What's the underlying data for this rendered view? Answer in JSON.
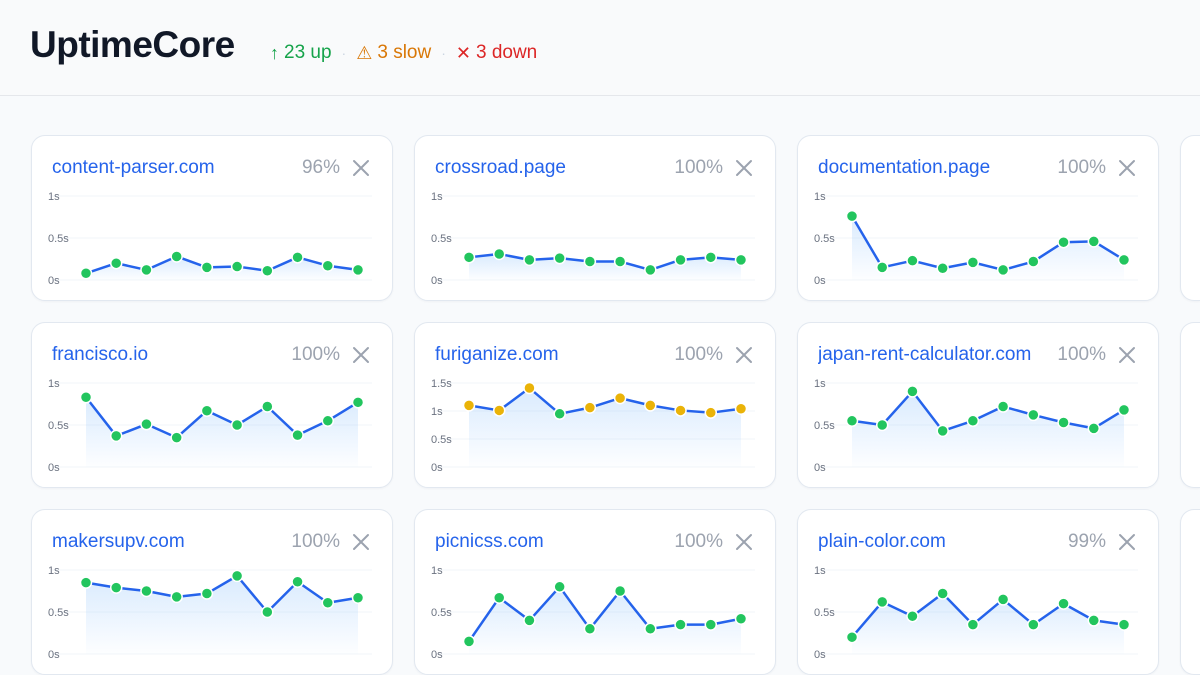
{
  "app": {
    "title": "UptimeCore",
    "summary": {
      "up": {
        "label": "23 up",
        "icon": "arrow-up-icon",
        "color": "#16a34a"
      },
      "slow": {
        "label": "3 slow",
        "icon": "warning-icon",
        "color": "#d97706"
      },
      "down": {
        "label": "3 down",
        "icon": "cross-icon",
        "color": "#dc2626"
      }
    }
  },
  "colors": {
    "line": "#2563eb",
    "ok": "#22c55e",
    "slow": "#eab308",
    "link": "#2563eb"
  },
  "monitors": [
    {
      "domain": "content-parser.com",
      "uptime": "96%",
      "y_labels": [
        "1s",
        "0.5s",
        "0s"
      ],
      "ymax": 1,
      "values": [
        0.08,
        0.2,
        0.12,
        0.28,
        0.15,
        0.16,
        0.11,
        0.27,
        0.17,
        0.12
      ],
      "status": [
        "ok",
        "ok",
        "ok",
        "ok",
        "ok",
        "ok",
        "ok",
        "ok",
        "ok",
        "ok"
      ]
    },
    {
      "domain": "crossroad.page",
      "uptime": "100%",
      "y_labels": [
        "1s",
        "0.5s",
        "0s"
      ],
      "ymax": 1,
      "values": [
        0.27,
        0.31,
        0.24,
        0.26,
        0.22,
        0.22,
        0.12,
        0.24,
        0.27,
        0.24
      ],
      "status": [
        "ok",
        "ok",
        "ok",
        "ok",
        "ok",
        "ok",
        "ok",
        "ok",
        "ok",
        "ok"
      ]
    },
    {
      "domain": "documentation.page",
      "uptime": "100%",
      "y_labels": [
        "1s",
        "0.5s",
        "0s"
      ],
      "ymax": 1,
      "values": [
        0.76,
        0.15,
        0.23,
        0.14,
        0.21,
        0.12,
        0.22,
        0.45,
        0.46,
        0.24
      ],
      "status": [
        "ok",
        "ok",
        "ok",
        "ok",
        "ok",
        "ok",
        "ok",
        "ok",
        "ok",
        "ok"
      ]
    },
    {
      "domain": "francisco.io",
      "uptime": "100%",
      "y_labels": [
        "1s",
        "0.5s",
        "0s"
      ],
      "ymax": 1,
      "values": [
        0.83,
        0.37,
        0.51,
        0.35,
        0.67,
        0.5,
        0.72,
        0.38,
        0.55,
        0.77
      ],
      "status": [
        "ok",
        "ok",
        "ok",
        "ok",
        "ok",
        "ok",
        "ok",
        "ok",
        "ok",
        "ok"
      ]
    },
    {
      "domain": "furiganize.com",
      "uptime": "100%",
      "y_labels": [
        "1.5s",
        "1s",
        "0.5s",
        "0s"
      ],
      "ymax": 1.5,
      "values": [
        1.1,
        1.01,
        1.41,
        0.95,
        1.06,
        1.23,
        1.1,
        1.01,
        0.97,
        1.04
      ],
      "status": [
        "slow",
        "slow",
        "slow",
        "ok",
        "slow",
        "slow",
        "slow",
        "slow",
        "slow",
        "slow"
      ]
    },
    {
      "domain": "japan-rent-calculator.com",
      "uptime": "100%",
      "y_labels": [
        "1s",
        "0.5s",
        "0s"
      ],
      "ymax": 1,
      "values": [
        0.55,
        0.5,
        0.9,
        0.43,
        0.55,
        0.72,
        0.62,
        0.53,
        0.46,
        0.68
      ],
      "status": [
        "ok",
        "ok",
        "ok",
        "ok",
        "ok",
        "ok",
        "ok",
        "ok",
        "ok",
        "ok"
      ]
    },
    {
      "domain": "makersupv.com",
      "uptime": "100%",
      "y_labels": [
        "1s",
        "0.5s",
        "0s"
      ],
      "ymax": 1,
      "values": [
        0.85,
        0.79,
        0.75,
        0.68,
        0.72,
        0.93,
        0.5,
        0.86,
        0.61,
        0.67
      ],
      "status": [
        "ok",
        "ok",
        "ok",
        "ok",
        "ok",
        "ok",
        "ok",
        "ok",
        "ok",
        "ok"
      ]
    },
    {
      "domain": "picnicss.com",
      "uptime": "100%",
      "y_labels": [
        "1s",
        "0.5s",
        "0s"
      ],
      "ymax": 1,
      "values": [
        0.15,
        0.67,
        0.4,
        0.8,
        0.3,
        0.75,
        0.3,
        0.35,
        0.35,
        0.42
      ],
      "status": [
        "ok",
        "ok",
        "ok",
        "ok",
        "ok",
        "ok",
        "ok",
        "ok",
        "ok",
        "ok"
      ]
    },
    {
      "domain": "plain-color.com",
      "uptime": "99%",
      "y_labels": [
        "1s",
        "0.5s",
        "0s"
      ],
      "ymax": 1,
      "values": [
        0.2,
        0.62,
        0.45,
        0.72,
        0.35,
        0.65,
        0.35,
        0.6,
        0.4,
        0.35
      ],
      "status": [
        "ok",
        "ok",
        "ok",
        "ok",
        "ok",
        "ok",
        "ok",
        "ok",
        "ok",
        "ok"
      ]
    }
  ]
}
